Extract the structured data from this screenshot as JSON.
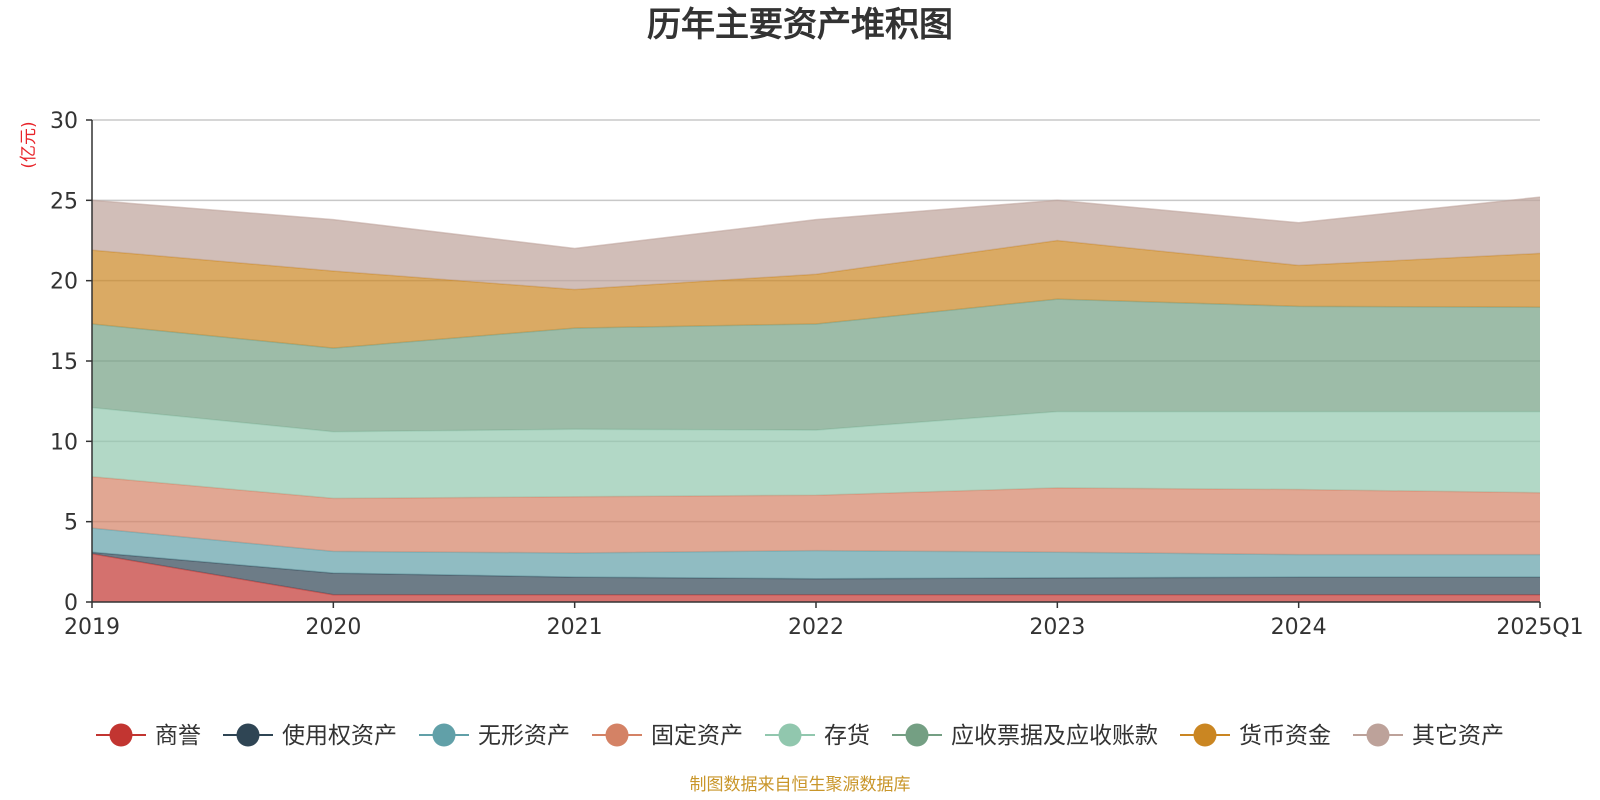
{
  "chart_data": {
    "type": "area",
    "stacked": true,
    "title": "历年主要资产堆积图",
    "unit_label": "(亿元)",
    "source_note": "制图数据来自恒生聚源数据库",
    "x": [
      "2019",
      "2020",
      "2021",
      "2022",
      "2023",
      "2024",
      "2025Q1"
    ],
    "y_ticks": [
      "0",
      "5",
      "10",
      "15",
      "20",
      "25",
      "30"
    ],
    "ylim": [
      0,
      30
    ],
    "grid": true,
    "legend_position": "bottom",
    "series": [
      {
        "name": "商誉",
        "color": "#c23531",
        "values": [
          3.0,
          0.45,
          0.45,
          0.45,
          0.45,
          0.45,
          0.45
        ]
      },
      {
        "name": "使用权资产",
        "color": "#2f4554",
        "values": [
          0.1,
          1.35,
          1.1,
          1.0,
          1.05,
          1.1,
          1.1
        ]
      },
      {
        "name": "无形资产",
        "color": "#61a0a8",
        "values": [
          1.5,
          1.35,
          1.5,
          1.75,
          1.6,
          1.4,
          1.4
        ]
      },
      {
        "name": "固定资产",
        "color": "#d48265",
        "values": [
          3.2,
          3.3,
          3.5,
          3.45,
          4.0,
          4.05,
          3.85
        ]
      },
      {
        "name": "存货",
        "color": "#91c7ae",
        "values": [
          4.3,
          4.15,
          4.2,
          4.05,
          4.75,
          4.85,
          5.05
        ]
      },
      {
        "name": "应收票据及应收账款",
        "color": "#749f83",
        "values": [
          5.2,
          5.2,
          6.3,
          6.6,
          7.0,
          6.55,
          6.5
        ]
      },
      {
        "name": "货币资金",
        "color": "#ca8622",
        "values": [
          4.6,
          4.8,
          2.4,
          3.1,
          3.65,
          2.55,
          3.35
        ]
      },
      {
        "name": "其它资产",
        "color": "#bda29a",
        "values": [
          3.1,
          3.2,
          2.55,
          3.4,
          2.5,
          2.65,
          3.5
        ]
      }
    ]
  }
}
